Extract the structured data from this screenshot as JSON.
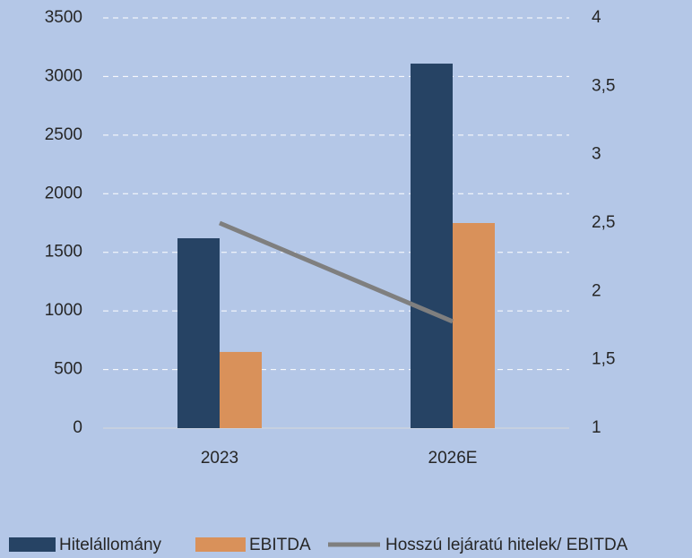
{
  "chart_data": {
    "type": "bar",
    "categories": [
      "2023",
      "2026E"
    ],
    "series": [
      {
        "name": "Hitelállomány",
        "color": "#264364",
        "type": "bar",
        "values": [
          1620,
          3110
        ]
      },
      {
        "name": "EBITDA",
        "color": "#d9915a",
        "type": "bar",
        "values": [
          650,
          1750
        ]
      },
      {
        "name": "Hosszú lejáratú hitelek/ EBITDA",
        "color": "#7f7f7f",
        "type": "line",
        "axis": "y2",
        "values": [
          2.5,
          1.78
        ]
      }
    ],
    "ylim": [
      0,
      3500
    ],
    "yticks": [
      0,
      500,
      1000,
      1500,
      2000,
      2500,
      3000,
      3500
    ],
    "y2lim": [
      1,
      4
    ],
    "y2ticks": [
      1,
      {
        "value": 1.5,
        "label": "1,5"
      },
      2,
      {
        "value": 2.5,
        "label": "2,5"
      },
      3,
      {
        "value": 3.5,
        "label": "3,5"
      },
      4
    ],
    "grid": true,
    "legend": "bottom"
  }
}
